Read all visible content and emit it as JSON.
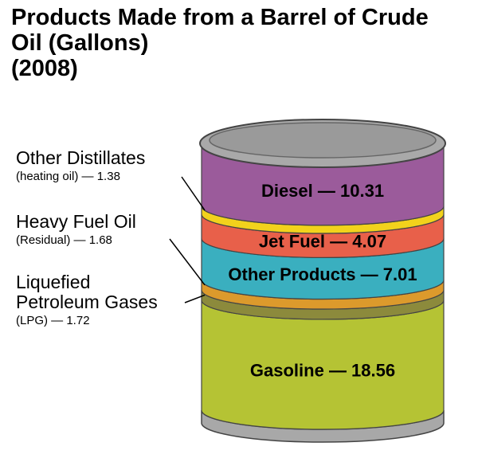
{
  "chart_data": {
    "type": "barrel",
    "title": "Products Made from a Barrel of Crude Oil (Gallons)",
    "subtitle": "(2008)",
    "categories": [
      "Gasoline",
      "Liquefied Petroleum Gases",
      "Heavy Fuel Oil",
      "Other Products",
      "Jet Fuel",
      "Other Distillates",
      "Diesel"
    ],
    "values": [
      18.56,
      1.72,
      1.68,
      7.01,
      4.07,
      1.38,
      10.31
    ],
    "value_labels": [
      "— 18.56",
      "(LPG) — 1.72",
      "(Residual) — 1.68",
      "— 7.01",
      "— 4.07",
      "(heating oil) — 1.38",
      "— 10.31"
    ],
    "label_outside": [
      false,
      true,
      true,
      false,
      false,
      true,
      false
    ],
    "colors": [
      "#b5c334",
      "#8c8a3c",
      "#dc9a2c",
      "#3aafbf",
      "#e8604a",
      "#f2d21c",
      "#9b5b9b"
    ]
  }
}
